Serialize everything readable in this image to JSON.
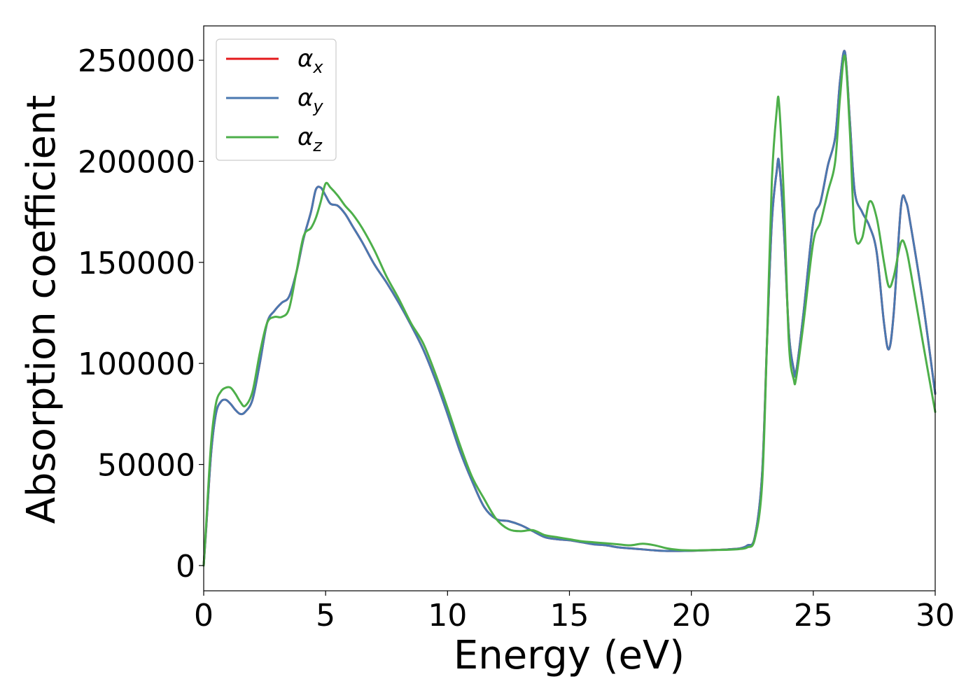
{
  "chart_data": {
    "type": "line",
    "title": "",
    "xlabel": "Energy (eV)",
    "ylabel": "Absorption coefficient",
    "xlim": [
      0,
      30
    ],
    "ylim": [
      -12500,
      267000
    ],
    "xticks": [
      0,
      5,
      10,
      15,
      20,
      25,
      30
    ],
    "yticks": [
      0,
      50000,
      100000,
      150000,
      200000,
      250000
    ],
    "grid": false,
    "legend": "top-left",
    "series": [
      {
        "name": "αx",
        "base": "α",
        "sub": "x",
        "color": "#e41a1c",
        "x": [
          0,
          0.1,
          0.3,
          0.5,
          0.7,
          0.9,
          1.1,
          1.3,
          1.5,
          1.7,
          2.0,
          2.3,
          2.6,
          2.9,
          3.2,
          3.5,
          3.8,
          4.1,
          4.4,
          4.6,
          4.8,
          5.0,
          5.2,
          5.5,
          5.8,
          6.1,
          6.5,
          7.0,
          7.5,
          8.0,
          8.5,
          9.0,
          9.5,
          10.0,
          10.5,
          11.0,
          11.5,
          12.0,
          12.5,
          13.0,
          13.5,
          14.0,
          14.5,
          15.0,
          15.5,
          16.0,
          16.5,
          17.0,
          17.5,
          18.0,
          18.5,
          19.0,
          19.5,
          20.0,
          20.5,
          21.0,
          21.5,
          22.0,
          22.3,
          22.6,
          22.9,
          23.1,
          23.3,
          23.5,
          23.6,
          23.8,
          24.0,
          24.2,
          24.3,
          24.6,
          25.0,
          25.3,
          25.6,
          25.9,
          26.1,
          26.3,
          26.5,
          26.7,
          27.0,
          27.3,
          27.6,
          27.9,
          28.1,
          28.3,
          28.6,
          28.8,
          29.0,
          29.5,
          30.0
        ],
        "values": [
          0,
          18000,
          55000,
          75000,
          81000,
          82000,
          80000,
          77000,
          75000,
          76000,
          82000,
          100000,
          120000,
          126000,
          130000,
          133000,
          145000,
          162000,
          175000,
          186000,
          187000,
          183000,
          179000,
          178000,
          174000,
          168000,
          160000,
          149000,
          140000,
          130000,
          119000,
          107000,
          92000,
          75000,
          57000,
          42000,
          29000,
          23000,
          22000,
          20000,
          17000,
          14000,
          13000,
          12500,
          11500,
          10500,
          10000,
          9000,
          8500,
          8000,
          7500,
          7200,
          7200,
          7300,
          7500,
          7700,
          8000,
          8500,
          10000,
          14000,
          45000,
          110000,
          170000,
          195000,
          199000,
          165000,
          115000,
          97000,
          96000,
          125000,
          170000,
          180000,
          198000,
          212000,
          240000,
          254000,
          220000,
          185000,
          175000,
          168000,
          155000,
          120000,
          107000,
          125000,
          178000,
          180000,
          168000,
          130000,
          85000
        ]
      },
      {
        "name": "αy",
        "base": "α",
        "sub": "y",
        "color": "#4a78b0",
        "x": [
          0,
          0.1,
          0.3,
          0.5,
          0.7,
          0.9,
          1.1,
          1.3,
          1.5,
          1.7,
          2.0,
          2.3,
          2.6,
          2.9,
          3.2,
          3.5,
          3.8,
          4.1,
          4.4,
          4.6,
          4.8,
          5.0,
          5.2,
          5.5,
          5.8,
          6.1,
          6.5,
          7.0,
          7.5,
          8.0,
          8.5,
          9.0,
          9.5,
          10.0,
          10.5,
          11.0,
          11.5,
          12.0,
          12.5,
          13.0,
          13.5,
          14.0,
          14.5,
          15.0,
          15.5,
          16.0,
          16.5,
          17.0,
          17.5,
          18.0,
          18.5,
          19.0,
          19.5,
          20.0,
          20.5,
          21.0,
          21.5,
          22.0,
          22.3,
          22.6,
          22.9,
          23.1,
          23.3,
          23.5,
          23.6,
          23.8,
          24.0,
          24.2,
          24.3,
          24.6,
          25.0,
          25.3,
          25.6,
          25.9,
          26.1,
          26.3,
          26.5,
          26.7,
          27.0,
          27.3,
          27.6,
          27.9,
          28.1,
          28.3,
          28.6,
          28.8,
          29.0,
          29.5,
          30.0
        ],
        "values": [
          0,
          18000,
          55000,
          75000,
          81000,
          82000,
          80000,
          77000,
          75000,
          76000,
          82000,
          100000,
          120000,
          126000,
          130000,
          133000,
          145000,
          162000,
          175000,
          186000,
          187000,
          183000,
          179000,
          178000,
          174000,
          168000,
          160000,
          149000,
          140000,
          130000,
          119000,
          107000,
          92000,
          75000,
          57000,
          42000,
          29000,
          23000,
          22000,
          20000,
          17000,
          14000,
          13000,
          12500,
          11500,
          10500,
          10000,
          9000,
          8500,
          8000,
          7500,
          7200,
          7200,
          7300,
          7500,
          7700,
          8000,
          8500,
          10000,
          14000,
          45000,
          110000,
          170000,
          195000,
          199000,
          165000,
          115000,
          97000,
          96000,
          125000,
          170000,
          180000,
          198000,
          212000,
          240000,
          254000,
          220000,
          185000,
          175000,
          168000,
          155000,
          120000,
          107000,
          125000,
          178000,
          180000,
          168000,
          130000,
          85000
        ]
      },
      {
        "name": "αz",
        "base": "α",
        "sub": "z",
        "color": "#4daf4a",
        "x": [
          0,
          0.1,
          0.3,
          0.5,
          0.7,
          0.9,
          1.1,
          1.3,
          1.5,
          1.7,
          2.0,
          2.3,
          2.6,
          2.9,
          3.2,
          3.5,
          3.8,
          4.1,
          4.4,
          4.6,
          4.8,
          5.0,
          5.2,
          5.5,
          5.8,
          6.1,
          6.5,
          7.0,
          7.5,
          8.0,
          8.5,
          9.0,
          9.5,
          10.0,
          10.5,
          11.0,
          11.5,
          12.0,
          12.5,
          13.0,
          13.5,
          14.0,
          14.5,
          15.0,
          15.5,
          16.0,
          16.5,
          17.0,
          17.5,
          18.0,
          18.5,
          19.0,
          19.5,
          20.0,
          20.5,
          21.0,
          21.5,
          22.0,
          22.3,
          22.6,
          22.9,
          23.1,
          23.3,
          23.5,
          23.6,
          23.8,
          24.0,
          24.2,
          24.3,
          24.6,
          25.0,
          25.3,
          25.6,
          25.9,
          26.1,
          26.3,
          26.5,
          26.7,
          27.0,
          27.3,
          27.6,
          27.9,
          28.1,
          28.3,
          28.6,
          28.8,
          29.0,
          29.5,
          30.0
        ],
        "values": [
          0,
          20000,
          60000,
          80000,
          86000,
          88000,
          88000,
          85000,
          81000,
          79000,
          86000,
          105000,
          120000,
          123000,
          123000,
          127000,
          145000,
          163000,
          167000,
          172000,
          180000,
          189000,
          187000,
          183000,
          178000,
          174000,
          167000,
          156000,
          143000,
          132000,
          120000,
          110000,
          95000,
          78000,
          60000,
          44000,
          33000,
          23000,
          18000,
          17000,
          17500,
          15000,
          14000,
          13000,
          12000,
          11500,
          11000,
          10500,
          10000,
          10800,
          10000,
          8500,
          7700,
          7500,
          7600,
          7700,
          7800,
          8200,
          9000,
          13000,
          40000,
          110000,
          190000,
          225000,
          228000,
          180000,
          110000,
          92000,
          93000,
          120000,
          160000,
          170000,
          185000,
          200000,
          232000,
          252000,
          215000,
          165000,
          162000,
          180000,
          172000,
          150000,
          138000,
          143000,
          160000,
          157000,
          145000,
          110000,
          76000
        ]
      }
    ]
  }
}
